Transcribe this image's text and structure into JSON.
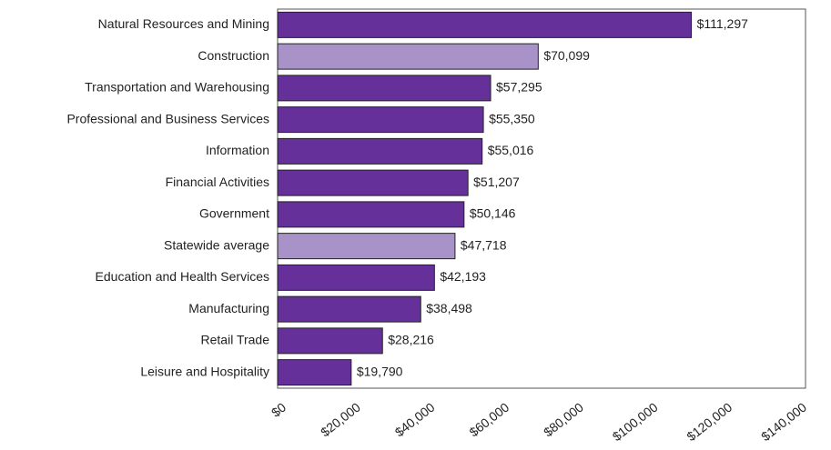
{
  "chart_data": {
    "type": "bar",
    "orientation": "horizontal",
    "categories": [
      "Natural Resources and Mining",
      "Construction",
      "Transportation and Warehousing",
      "Professional and Business Services",
      "Information",
      "Financial Activities",
      "Government",
      "Statewide average",
      "Education and Health Services",
      "Manufacturing",
      "Retail Trade",
      "Leisure and Hospitality"
    ],
    "values": [
      111297,
      70099,
      57295,
      55350,
      55016,
      51207,
      50146,
      47718,
      42193,
      38498,
      28216,
      19790
    ],
    "value_labels": [
      "$111,297",
      "$70,099",
      "$57,295",
      "$55,350",
      "$55,016",
      "$51,207",
      "$50,146",
      "$47,718",
      "$42,193",
      "$38,498",
      "$28,216",
      "$19,790"
    ],
    "colors": [
      "#65309a",
      "#a892c8",
      "#65309a",
      "#65309a",
      "#65309a",
      "#65309a",
      "#65309a",
      "#a892c8",
      "#65309a",
      "#65309a",
      "#65309a",
      "#65309a"
    ],
    "xlim": [
      0,
      142000
    ],
    "xticks": [
      {
        "value": 0,
        "label": "$0"
      },
      {
        "value": 20000,
        "label": "$20,000"
      },
      {
        "value": 40000,
        "label": "$40,000"
      },
      {
        "value": 60000,
        "label": "$60,000"
      },
      {
        "value": 80000,
        "label": "$80,000"
      },
      {
        "value": 100000,
        "label": "$100,000"
      },
      {
        "value": 120000,
        "label": "$120,000"
      },
      {
        "value": 140000,
        "label": "$140,000"
      }
    ],
    "grid": false
  }
}
